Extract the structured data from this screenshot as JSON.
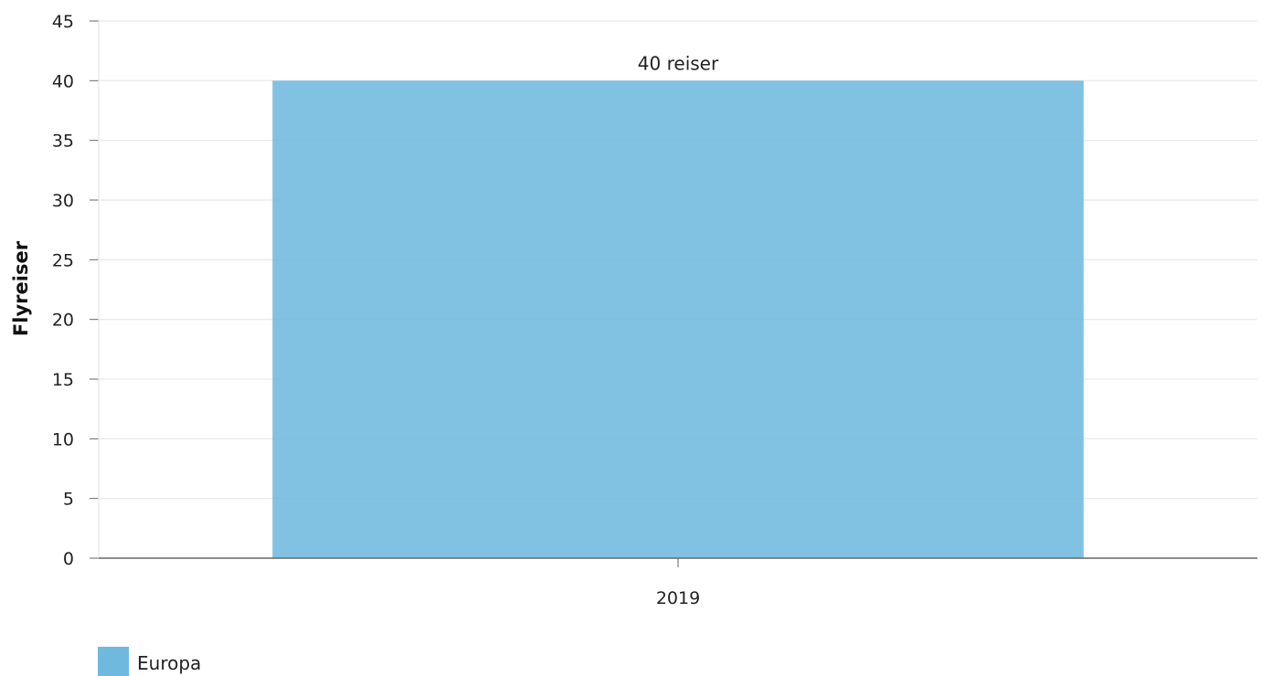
{
  "chart_data": {
    "type": "bar",
    "categories": [
      "2019"
    ],
    "series": [
      {
        "name": "Europa",
        "values": [
          40
        ],
        "color": "#6fb9de"
      }
    ],
    "data_labels": [
      "40 reiser"
    ],
    "title": "",
    "xlabel": "",
    "ylabel": "Flyreiser",
    "ylim": [
      0,
      45
    ],
    "yticks": [
      "0",
      "5",
      "10",
      "15",
      "20",
      "25",
      "30",
      "35",
      "40",
      "45"
    ],
    "grid": true,
    "legend": "bottom-left"
  },
  "colors": {
    "grid": "#e6e6e6",
    "axis": "#666666",
    "bar": "#6fb9de"
  }
}
